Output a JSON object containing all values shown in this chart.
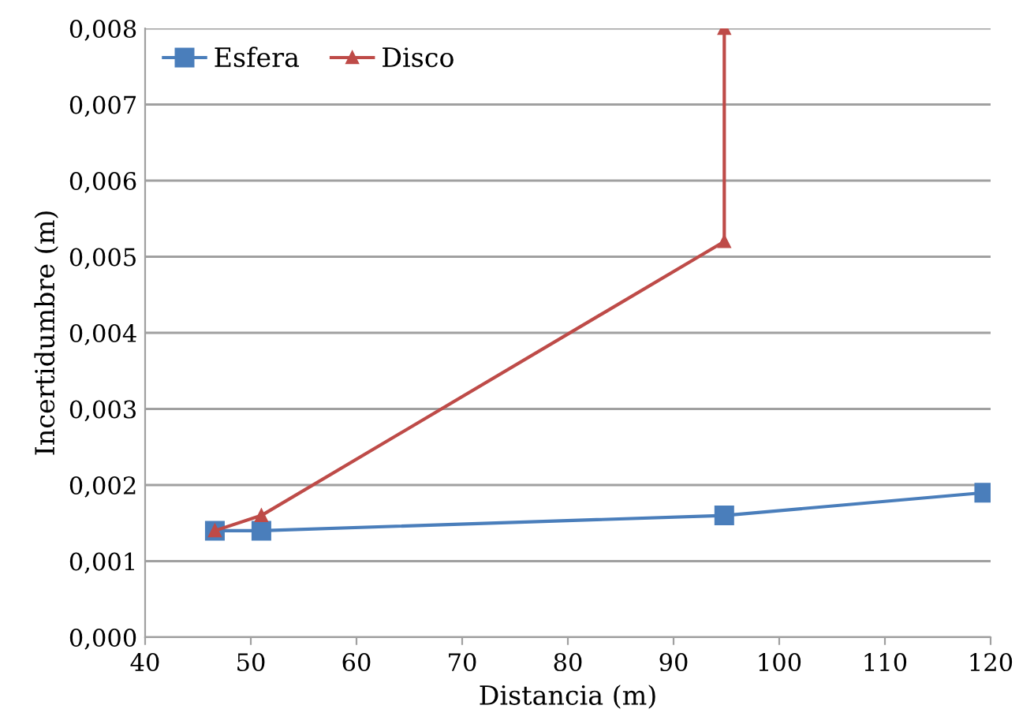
{
  "chart_data": {
    "type": "line",
    "xlabel": "Distancia (m)",
    "ylabel": "Incertidumbre (m)",
    "series": [
      {
        "name": "Esfera",
        "color": "#4a7ebb",
        "marker": "square",
        "x": [
          46.6,
          51,
          94.8,
          119.4
        ],
        "values": [
          0.0014,
          0.0014,
          0.0016,
          0.0019
        ]
      },
      {
        "name": "Disco",
        "color": "#be4b48",
        "marker": "triangle",
        "x": [
          46.6,
          51,
          94.8,
          94.8
        ],
        "values": [
          0.0014,
          0.0016,
          0.0052,
          0.008
        ]
      }
    ],
    "xlim": [
      40,
      120
    ],
    "xticks": [
      40,
      50,
      60,
      70,
      80,
      90,
      100,
      110,
      120
    ],
    "ylim": [
      0,
      0.008
    ],
    "yticks": [
      {
        "value": 0,
        "label": "0,000"
      },
      {
        "value": 0.001,
        "label": "0,001"
      },
      {
        "value": 0.002,
        "label": "0,002"
      },
      {
        "value": 0.003,
        "label": "0,003"
      },
      {
        "value": 0.004,
        "label": "0,004"
      },
      {
        "value": 0.005,
        "label": "0,005"
      },
      {
        "value": 0.006,
        "label": "0,006"
      },
      {
        "value": 0.007,
        "label": "0,007"
      },
      {
        "value": 0.008,
        "label": "0,008"
      }
    ],
    "grid": "y",
    "legend": "top left",
    "line_style": "solid"
  }
}
